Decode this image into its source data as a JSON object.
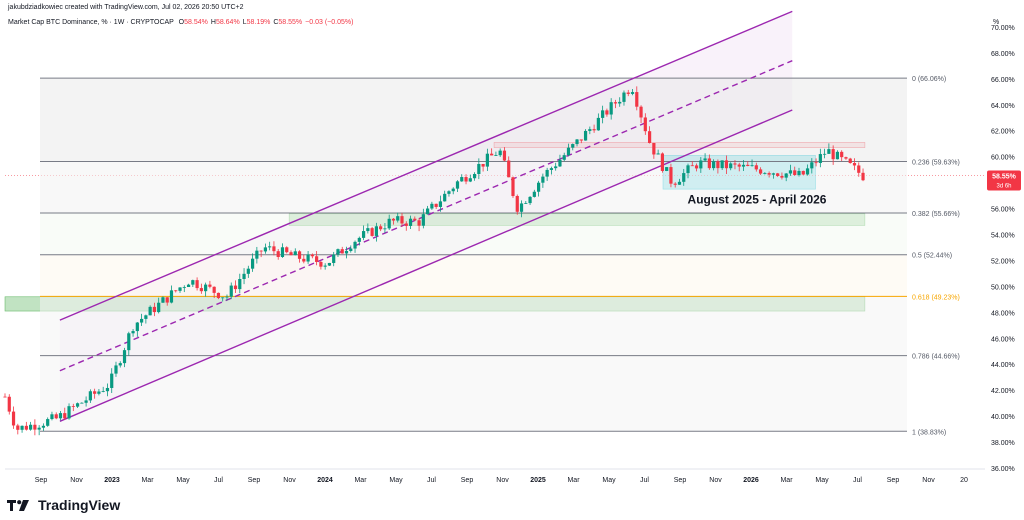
{
  "header": {
    "created_line": "jakubdziadkowiec created with TradingView.com, Jul 02, 2026 20:50 UTC+2",
    "symbol": "Market Cap BTC Dominance, % · 1W · CRYPTOCAP",
    "ohlc": [
      {
        "label": "O",
        "value": "58.54%"
      },
      {
        "label": "H",
        "value": "58.64%"
      },
      {
        "label": "L",
        "value": "58.19%"
      },
      {
        "label": "C",
        "value": "58.55%"
      },
      {
        "label": "",
        "value": "−0.03 (−0.05%)"
      }
    ]
  },
  "footer": {
    "brand": "TradingView"
  },
  "price_axis": {
    "unit": "%",
    "ticks": [
      "70.00%",
      "68.00%",
      "66.00%",
      "64.00%",
      "62.00%",
      "60.00%",
      "58.00%",
      "56.00%",
      "54.00%",
      "52.00%",
      "50.00%",
      "48.00%",
      "46.00%",
      "44.00%",
      "42.00%",
      "40.00%",
      "38.00%",
      "36.00%"
    ],
    "last_price": "58.55%",
    "countdown": "3d 6h"
  },
  "time_axis": {
    "labels": [
      "Sep",
      "Nov",
      "2023",
      "Mar",
      "May",
      "Jul",
      "Sep",
      "Nov",
      "2024",
      "Mar",
      "May",
      "Jul",
      "Sep",
      "Nov",
      "2025",
      "Mar",
      "May",
      "Jul",
      "Sep",
      "Nov",
      "2026",
      "Mar",
      "May",
      "Jul",
      "Sep",
      "Nov",
      "20"
    ]
  },
  "fibonacci": [
    {
      "ratio": "0",
      "label": "0 (66.06%)",
      "value": 66.06
    },
    {
      "ratio": "0.236",
      "label": "0.236 (59.63%)",
      "value": 59.63
    },
    {
      "ratio": "0.382",
      "label": "0.382 (55.66%)",
      "value": 55.66
    },
    {
      "ratio": "0.5",
      "label": "0.5 (52.44%)",
      "value": 52.44
    },
    {
      "ratio": "0.618",
      "label": "0.618 (49.23%)",
      "value": 49.23
    },
    {
      "ratio": "0.786",
      "label": "0.786 (44.66%)",
      "value": 44.66
    },
    {
      "ratio": "1",
      "label": "1 (38.83%)",
      "value": 38.83
    }
  ],
  "annotation": "August 2025 - April 2026",
  "colors": {
    "up": "#089981",
    "down": "#f23645",
    "channel": "#9c27b0",
    "fib_golden": "#f7a600",
    "support_zone": "#4caf50",
    "resistance_zone": "#f23645",
    "range_box": "#00bcd4"
  },
  "chart_data": {
    "type": "candlestick",
    "title": "Market Cap BTC Dominance, %",
    "interval": "1W",
    "ylim": [
      36,
      71
    ],
    "x_range": [
      "2022-08-22",
      "2027-01-15"
    ],
    "scale": "linear",
    "grid": false,
    "key_points": [
      {
        "date": "2022-08-22",
        "value": 41.5
      },
      {
        "date": "2022-09-10",
        "value": 39.0
      },
      {
        "date": "2022-11-15",
        "value": 39.8
      },
      {
        "date": "2023-02-10",
        "value": 42.5
      },
      {
        "date": "2023-03-20",
        "value": 47.0
      },
      {
        "date": "2023-06-20",
        "value": 50.5
      },
      {
        "date": "2023-08-20",
        "value": 49.2
      },
      {
        "date": "2023-10-20",
        "value": 53.0
      },
      {
        "date": "2023-12-10",
        "value": 52.3
      },
      {
        "date": "2024-02-01",
        "value": 51.8
      },
      {
        "date": "2024-03-15",
        "value": 53.5
      },
      {
        "date": "2024-05-15",
        "value": 55.0
      },
      {
        "date": "2024-07-01",
        "value": 55.0
      },
      {
        "date": "2024-09-01",
        "value": 58.0
      },
      {
        "date": "2024-11-10",
        "value": 60.5
      },
      {
        "date": "2024-12-10",
        "value": 56.0
      },
      {
        "date": "2025-01-20",
        "value": 58.5
      },
      {
        "date": "2025-03-15",
        "value": 61.0
      },
      {
        "date": "2025-06-15",
        "value": 65.5
      },
      {
        "date": "2025-07-15",
        "value": 61.0
      },
      {
        "date": "2025-08-20",
        "value": 58.0
      },
      {
        "date": "2025-10-01",
        "value": 59.5
      },
      {
        "date": "2026-01-15",
        "value": 59.0
      },
      {
        "date": "2026-03-20",
        "value": 58.5
      },
      {
        "date": "2026-05-01",
        "value": 60.5
      },
      {
        "date": "2026-06-29",
        "value": 58.55
      }
    ],
    "channel": {
      "upper": [
        {
          "date": "2022-11-20",
          "value": 47.4
        },
        {
          "date": "2026-03-05",
          "value": 71.2
        }
      ],
      "median": [
        {
          "date": "2022-11-20",
          "value": 43.5
        },
        {
          "date": "2026-03-05",
          "value": 67.4
        }
      ],
      "lower": [
        {
          "date": "2022-11-20",
          "value": 39.6
        },
        {
          "date": "2026-03-05",
          "value": 63.6
        }
      ]
    },
    "zones": [
      {
        "name": "resistance",
        "from": "2024-11-01",
        "to": "2026-07-02",
        "low": 60.7,
        "high": 61.1
      },
      {
        "name": "support",
        "from": "2023-12-01",
        "to": "2026-07-02",
        "low": 54.7,
        "high": 55.6
      },
      {
        "name": "support",
        "from": "2022-08-22",
        "to": "2026-07-02",
        "low": 48.1,
        "high": 49.2
      },
      {
        "name": "range",
        "from": "2025-08-05",
        "to": "2026-04-12",
        "low": 57.5,
        "high": 60.1
      }
    ]
  }
}
